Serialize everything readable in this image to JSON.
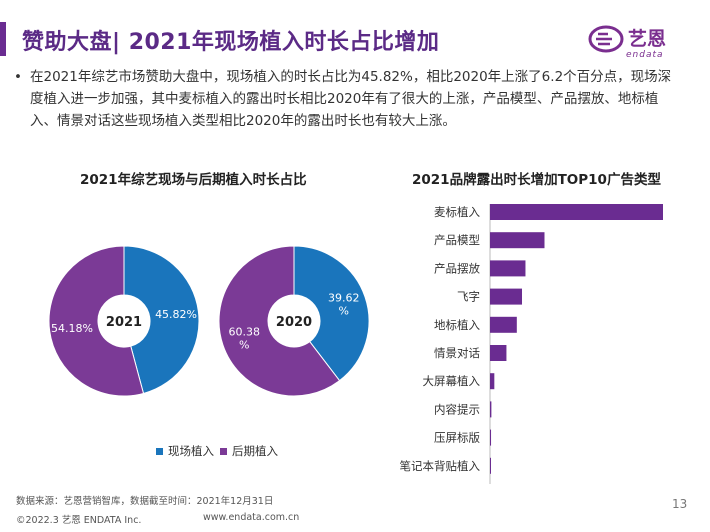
{
  "header": {
    "title": "赞助大盘| 2021年现场植入时长占比增加",
    "logo_cn": "艺恩",
    "logo_en": "endata"
  },
  "intro": {
    "bullet": "•",
    "text": "在2021年综艺市场赞助大盘中，现场植入的时长占比为45.82%，相比2020年上涨了6.2个百分点，现场深度植入进一步加强，其中麦标植入的露出时长相比2020年有了很大的上涨，产品模型、产品摆放、地标植入、情景对话这些现场植入类型相比2020年的露出时长也有较大上涨。"
  },
  "colors": {
    "accent": "#5b2a86",
    "onsite": "#1a75bc",
    "post": "#7b3a96",
    "bar": "#6a2c91"
  },
  "chart_data": [
    {
      "type": "pie",
      "title": "2021年综艺现场与后期植入时长占比",
      "legend": [
        "现场植入",
        "后期植入"
      ],
      "legend_position": "bottom",
      "donuts": [
        {
          "label": "2021",
          "slices": [
            {
              "name": "现场植入",
              "value": 45.82,
              "label": "45.82%"
            },
            {
              "name": "后期植入",
              "value": 54.18,
              "label": "54.18%"
            }
          ]
        },
        {
          "label": "2020",
          "slices": [
            {
              "name": "现场植入",
              "value": 39.62,
              "label_lines": [
                "39.62",
                "%"
              ]
            },
            {
              "name": "后期植入",
              "value": 60.38,
              "label_lines": [
                "60.38",
                "%"
              ]
            }
          ]
        }
      ]
    },
    {
      "type": "bar",
      "orientation": "horizontal",
      "title": "2021品牌露出时长增加TOP10广告类型",
      "categories": [
        "麦标植入",
        "产品模型",
        "产品摆放",
        "飞字",
        "地标植入",
        "情景对话",
        "大屏幕植入",
        "内容提示",
        "压屏标版",
        "笔记本背贴植入"
      ],
      "values": [
        100,
        31.5,
        20.5,
        18.5,
        15.5,
        9.5,
        2.5,
        0.8,
        0.6,
        0.4
      ],
      "xlim": [
        0,
        100
      ],
      "axis_labels_shown": false
    }
  ],
  "footer": {
    "source": "数据来源：艺恩营销智库，数据截至时间：2021年12月31日",
    "copyright": "©2022.3 艺恩 ENDATA Inc.",
    "url": "www.endata.com.cn",
    "page": "13"
  }
}
